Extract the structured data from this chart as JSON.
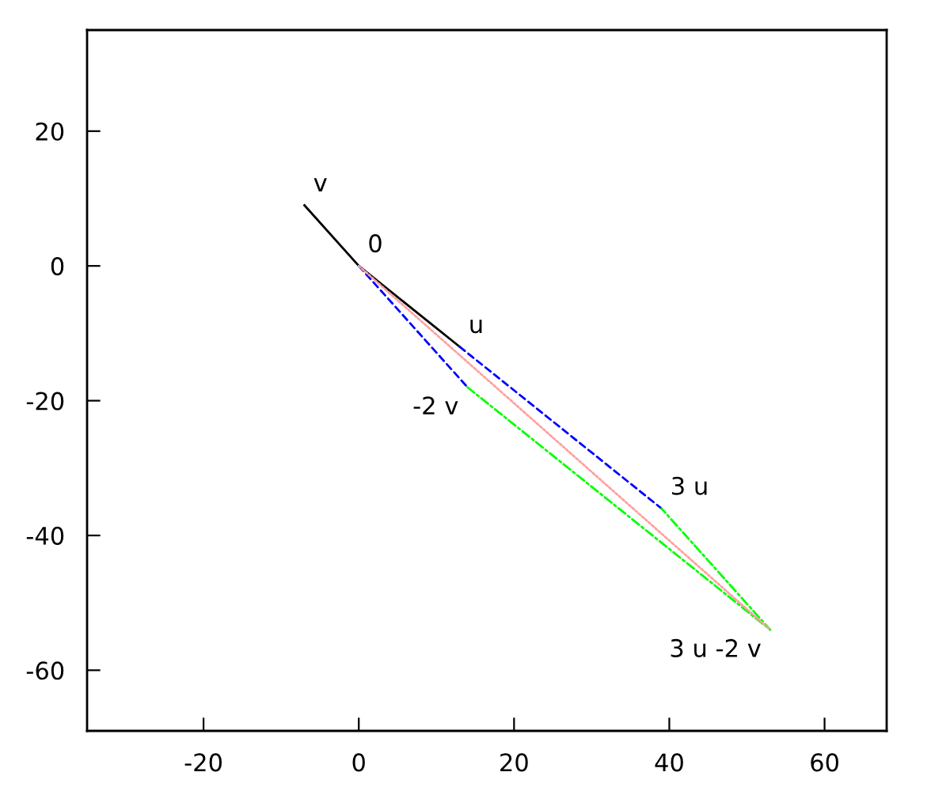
{
  "chart_data": {
    "type": "line",
    "series": [
      {
        "color": "#000000",
        "line_style": "solid",
        "x": [
          -7,
          0,
          13
        ],
        "values": [
          9,
          0,
          -12
        ]
      },
      {
        "color": "#0000ff",
        "line_style": "dashed",
        "x": [
          0,
          14
        ],
        "values": [
          0,
          -18
        ]
      },
      {
        "color": "#0000ff",
        "line_style": "dashed",
        "x": [
          13,
          39
        ],
        "values": [
          -12,
          -36
        ]
      },
      {
        "color": "#ffa0a0",
        "line_style": "dotted",
        "x": [
          0,
          53
        ],
        "values": [
          0,
          -54
        ]
      },
      {
        "color": "#00ff00",
        "line_style": "dashdot",
        "x": [
          14,
          53,
          39
        ],
        "values": [
          -18,
          -54,
          -36
        ]
      }
    ],
    "annotations": [
      {
        "text": "v",
        "x": -7,
        "y": 9
      },
      {
        "text": "0",
        "x": 0,
        "y": 0
      },
      {
        "text": "u",
        "x": 13,
        "y": -12
      },
      {
        "text": "-2 v",
        "x": 14,
        "y": -18
      },
      {
        "text": "3 u",
        "x": 39,
        "y": -36
      },
      {
        "text": "3 u -2 v",
        "x": 53,
        "y": -54
      }
    ],
    "xlim": [
      -35,
      68
    ],
    "ylim": [
      -69,
      35
    ],
    "xticks": [
      -20,
      0,
      20,
      40,
      60
    ],
    "yticks": [
      -60,
      -40,
      -20,
      0,
      20
    ],
    "grid": false,
    "legend": false
  }
}
